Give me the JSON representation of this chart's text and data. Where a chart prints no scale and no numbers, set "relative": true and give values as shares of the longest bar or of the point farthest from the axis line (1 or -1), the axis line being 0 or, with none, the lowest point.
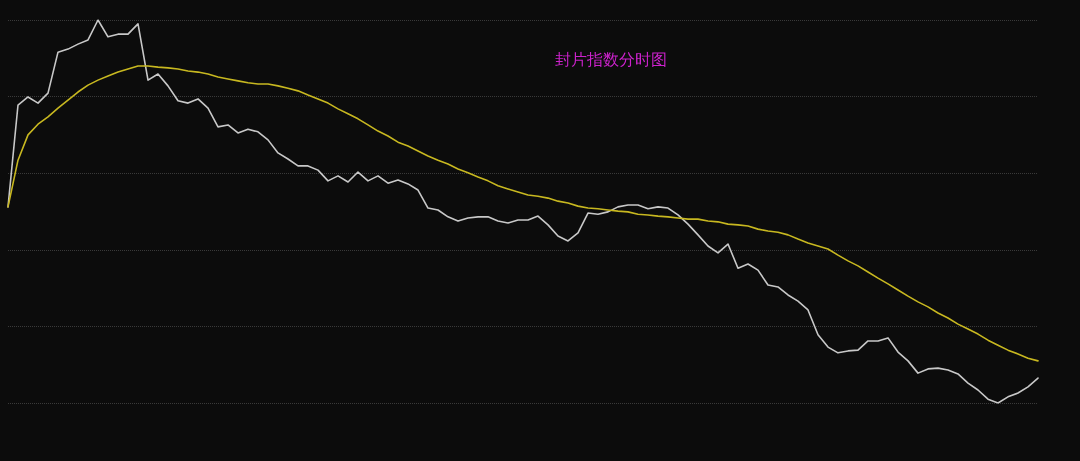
{
  "chart_data": {
    "type": "line",
    "title": "封片指数分时图",
    "relative": true,
    "grid": "y",
    "marker": "none",
    "line_style": "solid",
    "categories": [
      null,
      null,
      null,
      null,
      null,
      null,
      null,
      null,
      null,
      null,
      null,
      null,
      null,
      null,
      null,
      null,
      null,
      null,
      null,
      null,
      null,
      null,
      null,
      null,
      null,
      null,
      null,
      null,
      null,
      null,
      null,
      null,
      null,
      null,
      null,
      null,
      null,
      null,
      null,
      null,
      null,
      null,
      null,
      null,
      null,
      null,
      null,
      null,
      null,
      null,
      null,
      null,
      null,
      null,
      null,
      null,
      null,
      null,
      null,
      null,
      null,
      null,
      null,
      null,
      null,
      null,
      null,
      null,
      null,
      null,
      null,
      null,
      null,
      null,
      null,
      null,
      null,
      null,
      null,
      null,
      null,
      null,
      null,
      null,
      null,
      null,
      null,
      null,
      null,
      null,
      null,
      null,
      null,
      null,
      null,
      null,
      null,
      null,
      null,
      null,
      null,
      null,
      null,
      null
    ],
    "series": [
      {
        "color": "#c8c8c8",
        "values": [
          0.512,
          0.778,
          0.799,
          0.783,
          0.809,
          0.916,
          0.924,
          0.937,
          0.948,
          1.0,
          0.956,
          0.963,
          0.963,
          0.99,
          0.843,
          0.859,
          0.828,
          0.789,
          0.783,
          0.794,
          0.77,
          0.721,
          0.726,
          0.705,
          0.715,
          0.708,
          0.687,
          0.653,
          0.637,
          0.619,
          0.619,
          0.608,
          0.58,
          0.593,
          0.577,
          0.603,
          0.58,
          0.593,
          0.574,
          0.582,
          0.572,
          0.556,
          0.509,
          0.504,
          0.486,
          0.475,
          0.483,
          0.486,
          0.486,
          0.475,
          0.47,
          0.478,
          0.478,
          0.488,
          0.465,
          0.436,
          0.423,
          0.444,
          0.496,
          0.493,
          0.499,
          0.512,
          0.517,
          0.517,
          0.507,
          0.512,
          0.509,
          0.491,
          0.467,
          0.439,
          0.41,
          0.392,
          0.415,
          0.352,
          0.363,
          0.347,
          0.308,
          0.303,
          0.282,
          0.266,
          0.243,
          0.178,
          0.146,
          0.131,
          0.136,
          0.138,
          0.162,
          0.162,
          0.17,
          0.133,
          0.11,
          0.078,
          0.089,
          0.091,
          0.086,
          0.076,
          0.052,
          0.034,
          0.01,
          0.0,
          0.016,
          0.026,
          0.042,
          0.065
        ]
      },
      {
        "color": "#c8b820",
        "values": [
          0.512,
          0.634,
          0.7,
          0.728,
          0.747,
          0.77,
          0.791,
          0.812,
          0.83,
          0.843,
          0.854,
          0.864,
          0.872,
          0.88,
          0.88,
          0.877,
          0.875,
          0.872,
          0.867,
          0.864,
          0.859,
          0.851,
          0.846,
          0.841,
          0.836,
          0.833,
          0.833,
          0.828,
          0.822,
          0.815,
          0.804,
          0.794,
          0.783,
          0.768,
          0.755,
          0.742,
          0.726,
          0.71,
          0.697,
          0.681,
          0.671,
          0.658,
          0.645,
          0.634,
          0.624,
          0.611,
          0.601,
          0.59,
          0.58,
          0.567,
          0.559,
          0.551,
          0.543,
          0.54,
          0.535,
          0.527,
          0.522,
          0.514,
          0.509,
          0.507,
          0.504,
          0.501,
          0.499,
          0.493,
          0.491,
          0.488,
          0.486,
          0.483,
          0.48,
          0.48,
          0.475,
          0.473,
          0.467,
          0.465,
          0.462,
          0.454,
          0.449,
          0.446,
          0.439,
          0.428,
          0.418,
          0.41,
          0.402,
          0.386,
          0.371,
          0.358,
          0.342,
          0.326,
          0.311,
          0.295,
          0.279,
          0.264,
          0.251,
          0.235,
          0.222,
          0.206,
          0.193,
          0.18,
          0.164,
          0.151,
          0.138,
          0.128,
          0.117,
          0.11
        ]
      }
    ]
  }
}
